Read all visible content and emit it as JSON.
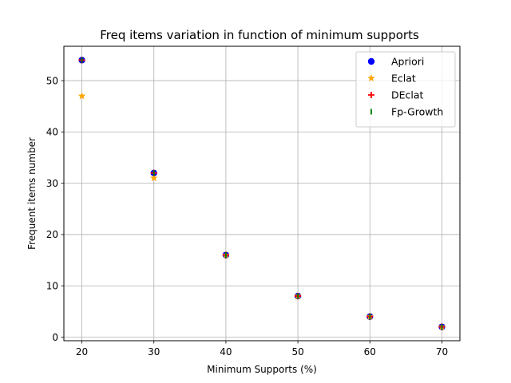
{
  "chart_data": {
    "type": "scatter",
    "title": "Freq items variation in function of minimum supports",
    "xlabel": "Minimum Supports (%)",
    "ylabel": "Frequent items number",
    "xlim": [
      17.5,
      72.5
    ],
    "ylim": [
      -0.7,
      56.7
    ],
    "xticks": [
      20,
      30,
      40,
      50,
      60,
      70
    ],
    "yticks": [
      0,
      10,
      20,
      30,
      40,
      50
    ],
    "grid": true,
    "legend_position": "top-right",
    "x": [
      20,
      30,
      40,
      50,
      60,
      70
    ],
    "series": [
      {
        "name": "Apriori",
        "marker": "circle",
        "color": "#0000ff",
        "values": [
          54,
          32,
          16,
          8,
          4,
          2
        ]
      },
      {
        "name": "Eclat",
        "marker": "star",
        "color": "#ffa500",
        "values": [
          47,
          31,
          16,
          8,
          4,
          2
        ]
      },
      {
        "name": "DEclat",
        "marker": "plus",
        "color": "#ff0000",
        "values": [
          54,
          32,
          16,
          8,
          4,
          2
        ]
      },
      {
        "name": "Fp-Growth",
        "marker": "vline",
        "color": "#008000",
        "values": [
          54,
          32,
          16,
          8,
          4,
          2
        ]
      }
    ]
  }
}
